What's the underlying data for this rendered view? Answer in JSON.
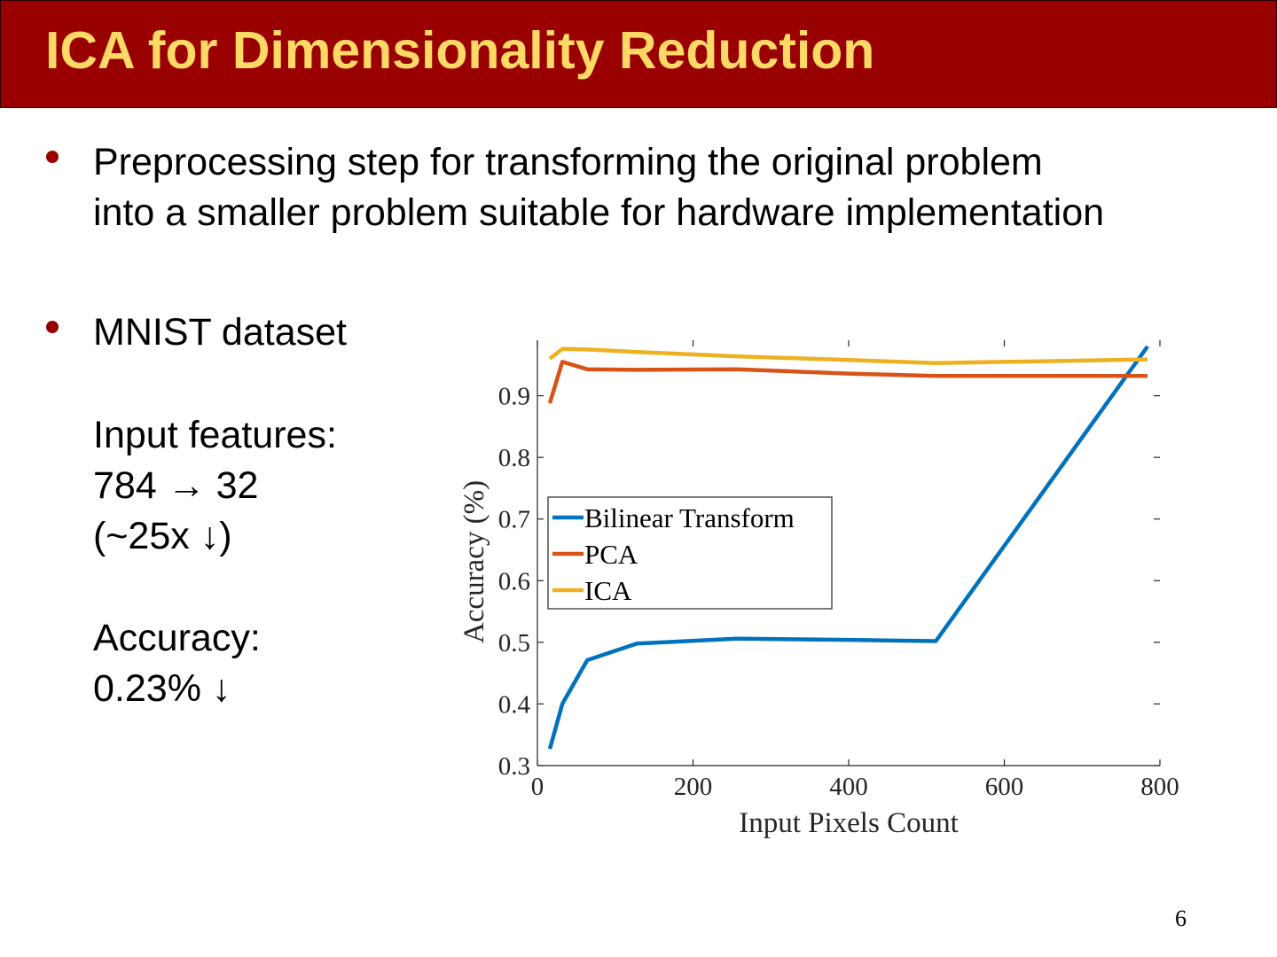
{
  "slide": {
    "title": "ICA for Dimensionality Reduction",
    "page_number": "6"
  },
  "bullets": [
    {
      "lines": [
        "Preprocessing step for transforming the original problem",
        "into a smaller problem suitable for hardware implementation"
      ]
    },
    {
      "label": "MNIST dataset",
      "details": [
        "Input features:",
        "784 → 32",
        "(~25x ↓)",
        "Accuracy:",
        "0.23% ↓"
      ]
    }
  ],
  "colors": {
    "title_bar": "#990000",
    "title_text": "#ffd966",
    "bullet": "#990000"
  },
  "chart_data": {
    "type": "line",
    "xlabel": "Input Pixels Count",
    "ylabel": "Accuracy (%)",
    "xlim": [
      0,
      800
    ],
    "ylim": [
      0.3,
      0.99
    ],
    "x_ticks": [
      0,
      200,
      400,
      600,
      800
    ],
    "y_ticks": [
      0.3,
      0.4,
      0.5,
      0.6,
      0.7,
      0.8,
      0.9
    ],
    "grid": false,
    "legend_position": "left",
    "series": [
      {
        "name": "Bilinear Transform",
        "color": "#0072bd",
        "points": [
          [
            16,
            0.327
          ],
          [
            32,
            0.4
          ],
          [
            64,
            0.471
          ],
          [
            128,
            0.498
          ],
          [
            256,
            0.506
          ],
          [
            400,
            0.504
          ],
          [
            512,
            0.502
          ],
          [
            784,
            0.98
          ]
        ]
      },
      {
        "name": "PCA",
        "color": "#d95319",
        "points": [
          [
            16,
            0.888
          ],
          [
            32,
            0.955
          ],
          [
            64,
            0.943
          ],
          [
            128,
            0.942
          ],
          [
            256,
            0.943
          ],
          [
            400,
            0.936
          ],
          [
            512,
            0.932
          ],
          [
            784,
            0.932
          ]
        ]
      },
      {
        "name": "ICA",
        "color": "#edb120",
        "points": [
          [
            16,
            0.96
          ],
          [
            32,
            0.976
          ],
          [
            64,
            0.975
          ],
          [
            128,
            0.971
          ],
          [
            256,
            0.964
          ],
          [
            400,
            0.958
          ],
          [
            512,
            0.953
          ],
          [
            784,
            0.959
          ]
        ]
      }
    ]
  }
}
